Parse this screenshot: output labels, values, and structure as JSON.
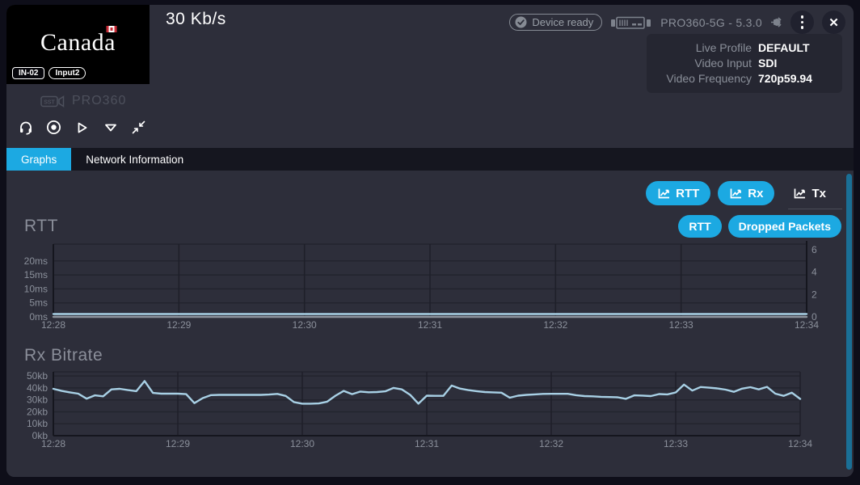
{
  "header": {
    "bitrate": "30 Kb/s",
    "device_ready": "Device ready",
    "device_name": "PRO360-5G - 5.3.0",
    "info": {
      "live_profile_label": "Live Profile",
      "live_profile_value": "DEFAULT",
      "video_input_label": "Video Input",
      "video_input_value": "SDI",
      "video_frequency_label": "Video Frequency",
      "video_frequency_value": "720p59.94"
    }
  },
  "thumbnail": {
    "wordmark": "Canada",
    "badge_channel": "IN-02",
    "badge_input": "Input2"
  },
  "unit": {
    "label": "PRO360",
    "icon_text": "SST"
  },
  "tabs": [
    {
      "label": "Graphs",
      "active": true
    },
    {
      "label": "Network Information",
      "active": false
    }
  ],
  "graph_toggles": [
    {
      "label": "RTT",
      "active": true
    },
    {
      "label": "Rx",
      "active": true
    },
    {
      "label": "Tx",
      "active": false
    }
  ],
  "rtt_section": {
    "title": "RTT",
    "buttons": [
      {
        "label": "RTT"
      },
      {
        "label": "Dropped Packets"
      }
    ]
  },
  "rx_section": {
    "title": "Rx Bitrate"
  },
  "colors": {
    "accent_cyan": "#1ca9e2",
    "line_blue": "#a8d0e5",
    "scrollbar_teal": "#1a6f96",
    "window_bg": "#2d2e3a",
    "tabbar_bg": "#15161f"
  },
  "chart_data": [
    {
      "type": "line",
      "title": "RTT",
      "x_ticks": [
        "12:28",
        "12:29",
        "12:30",
        "12:31",
        "12:32",
        "12:33",
        "12:34"
      ],
      "y_left": {
        "ticks": [
          0,
          5,
          10,
          15,
          20
        ],
        "labels": [
          "0ms",
          "5ms",
          "10ms",
          "15ms",
          "20ms"
        ],
        "max": 26
      },
      "y_right": {
        "ticks": [
          0,
          2,
          4,
          6
        ],
        "labels": [
          "0",
          "2",
          "4",
          "6"
        ],
        "max": 6.5
      },
      "grid": true,
      "legend": "none",
      "series": [
        {
          "name": "Dropped Packets",
          "color": "#8d949d",
          "values": [
            0,
            0,
            0,
            0,
            0,
            0,
            0,
            0,
            0,
            0,
            0,
            0,
            0
          ]
        },
        {
          "name": "RTT",
          "color": "#a8d0e5",
          "values": [
            1,
            1,
            1,
            1,
            1,
            1,
            1,
            1,
            1,
            1,
            1,
            1,
            1
          ]
        }
      ]
    },
    {
      "type": "line",
      "title": "Rx Bitrate",
      "x_ticks": [
        "12:28",
        "12:29",
        "12:30",
        "12:31",
        "12:32",
        "12:33",
        "12:34"
      ],
      "y_left": {
        "ticks": [
          0,
          10,
          20,
          30,
          40,
          50
        ],
        "labels": [
          "0kb",
          "10kb",
          "20kb",
          "30kb",
          "40kb",
          "50kb"
        ],
        "max": 53.5
      },
      "grid": true,
      "legend": "none",
      "series": [
        {
          "name": "Rx Bitrate",
          "color": "#a8d0e5",
          "values": [
            39.3,
            37.5,
            36.3,
            35.2,
            31.0,
            33.8,
            33.0,
            38.8,
            39.3,
            38.2,
            37.3,
            45.8,
            35.8,
            35.2,
            35.2,
            35.2,
            34.8,
            27.3,
            31.5,
            34.0,
            34.2,
            34.2,
            34.2,
            34.2,
            34.2,
            34.2,
            34.5,
            35.0,
            33.3,
            28.2,
            26.8,
            26.8,
            27.0,
            28.5,
            33.5,
            37.5,
            34.8,
            37.0,
            36.4,
            36.6,
            37.2,
            40.0,
            38.8,
            34.2,
            26.8,
            33.5,
            33.4,
            33.4,
            42.0,
            39.5,
            38.2,
            37.3,
            36.6,
            36.3,
            36.0,
            31.8,
            33.5,
            34.2,
            34.6,
            35.0,
            35.1,
            35.1,
            35.1,
            33.9,
            33.2,
            33.0,
            32.6,
            32.4,
            32.2,
            30.9,
            33.8,
            33.6,
            33.2,
            34.9,
            34.6,
            36.2,
            42.8,
            37.8,
            40.8,
            40.2,
            39.6,
            38.6,
            36.8,
            39.4,
            40.6,
            38.8,
            40.9,
            35.2,
            33.4,
            36.0,
            30.8
          ]
        }
      ]
    }
  ]
}
